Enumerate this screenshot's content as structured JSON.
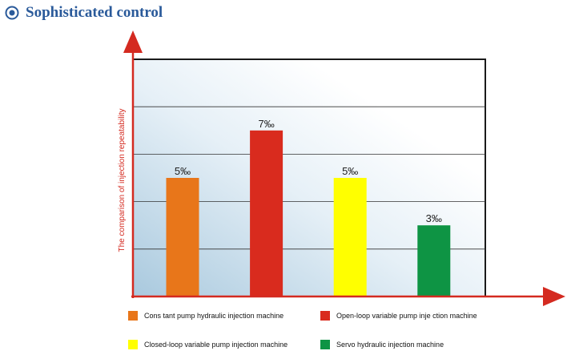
{
  "header": {
    "title": "Sophisticated control"
  },
  "colors": {
    "accent": "#2a5a9a",
    "axis": "#d42a20"
  },
  "icons": {
    "header_icon": "target-circle-icon"
  },
  "chart_data": {
    "type": "bar",
    "title": "",
    "ylabel": "The comparison of injection repeatability",
    "xlabel": "",
    "ylim": [
      0,
      10
    ],
    "grid": true,
    "categories": [
      "Cons tant pump hydraulic injection machine",
      "Open-loop variable pump inje ction machine",
      "Closed-loop variable pump injection machine",
      "Servo hydraulic injection machine"
    ],
    "values": [
      5,
      7,
      5,
      3
    ],
    "data_labels": [
      "5‰",
      "7‰",
      "5‰",
      "3‰"
    ],
    "colors": [
      "#e8761a",
      "#d92b1e",
      "#ffff00",
      "#0e9444"
    ],
    "legend_position": "bottom"
  }
}
